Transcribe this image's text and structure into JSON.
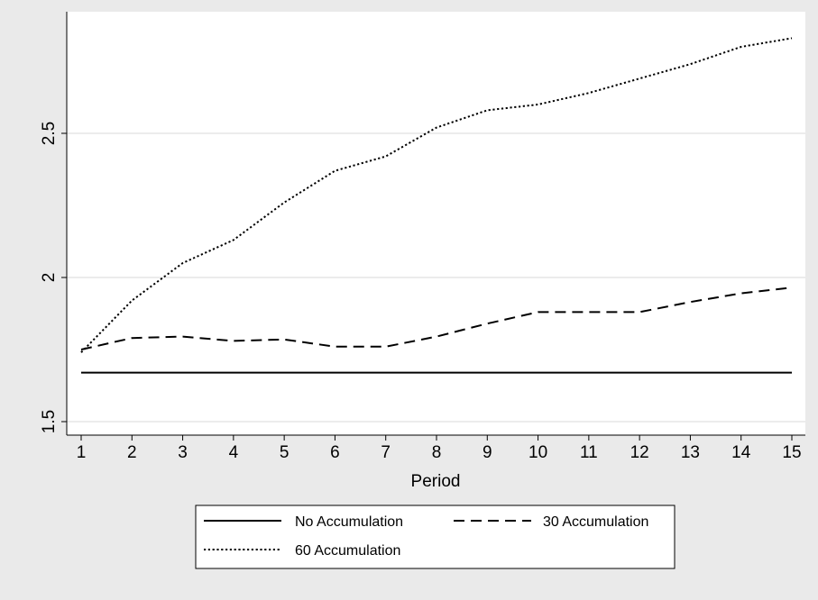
{
  "chart_data": {
    "type": "line",
    "title": "",
    "xlabel": "Period",
    "ylabel": "",
    "x": [
      1,
      2,
      3,
      4,
      5,
      6,
      7,
      8,
      9,
      10,
      11,
      12,
      13,
      14,
      15
    ],
    "xlim": [
      1,
      15
    ],
    "ylim": [
      1.5,
      2.85
    ],
    "yticks": [
      "1.5",
      "2",
      "2.5"
    ],
    "ytick_values": [
      1.5,
      2,
      2.5
    ],
    "xticks": [
      "1",
      "2",
      "3",
      "4",
      "5",
      "6",
      "7",
      "8",
      "9",
      "10",
      "11",
      "12",
      "13",
      "14",
      "15"
    ],
    "grid": "horizontal",
    "legend_position": "bottom",
    "series": [
      {
        "name": "No Accumulation",
        "dash": "solid",
        "values": [
          1.67,
          1.67,
          1.67,
          1.67,
          1.67,
          1.67,
          1.67,
          1.67,
          1.67,
          1.67,
          1.67,
          1.67,
          1.67,
          1.67,
          1.67
        ]
      },
      {
        "name": "30 Accumulation",
        "dash": "dashed",
        "values": [
          1.75,
          1.79,
          1.795,
          1.78,
          1.785,
          1.76,
          1.76,
          1.795,
          1.84,
          1.88,
          1.88,
          1.88,
          1.915,
          1.945,
          1.965
        ]
      },
      {
        "name": "60 Accumulation",
        "dash": "dotted",
        "values": [
          1.74,
          1.92,
          2.05,
          2.13,
          2.26,
          2.37,
          2.42,
          2.52,
          2.58,
          2.6,
          2.64,
          2.69,
          2.74,
          2.8,
          2.83
        ]
      }
    ],
    "colors": {
      "background": "#eaeaea",
      "plot_area": "#ffffff",
      "line": "#000000",
      "grid": "#e0e0e0"
    }
  }
}
